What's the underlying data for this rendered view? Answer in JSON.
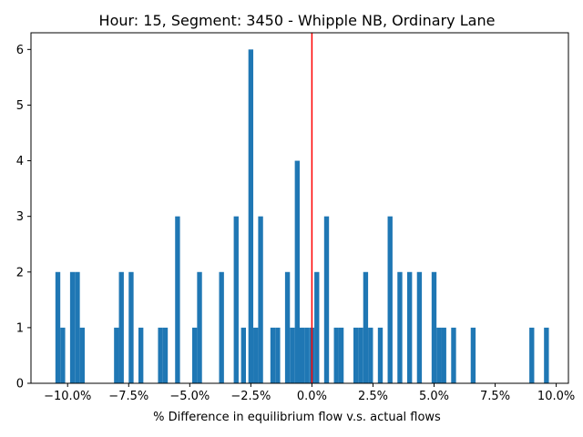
{
  "chart_data": {
    "type": "bar",
    "title": "Hour: 15, Segment: 3450 - Whipple NB, Ordinary Lane",
    "xlabel": "% Difference in equilibrium flow v.s. actual flows",
    "ylabel": "",
    "xlim": [
      -11.5,
      10.5
    ],
    "ylim": [
      0,
      6.3
    ],
    "bin_width": 0.2,
    "x_ticks": [
      -10.0,
      -7.5,
      -5.0,
      -2.5,
      0.0,
      2.5,
      5.0,
      7.5,
      10.0
    ],
    "x_tick_labels": [
      "−10.0%",
      "−7.5%",
      "−5.0%",
      "−2.5%",
      "0.0%",
      "2.5%",
      "5.0%",
      "7.5%",
      "10.0%"
    ],
    "y_ticks": [
      0,
      1,
      2,
      3,
      4,
      5,
      6
    ],
    "y_tick_labels": [
      "0",
      "1",
      "2",
      "3",
      "4",
      "5",
      "6"
    ],
    "bar_color": "#1f77b4",
    "reference_line": {
      "x": 0.0,
      "color": "#ff0000"
    },
    "bins": [
      {
        "x": -10.5,
        "count": 2
      },
      {
        "x": -10.3,
        "count": 1
      },
      {
        "x": -9.9,
        "count": 2
      },
      {
        "x": -9.7,
        "count": 2
      },
      {
        "x": -9.5,
        "count": 1
      },
      {
        "x": -8.1,
        "count": 1
      },
      {
        "x": -7.9,
        "count": 2
      },
      {
        "x": -7.5,
        "count": 2
      },
      {
        "x": -7.1,
        "count": 1
      },
      {
        "x": -6.3,
        "count": 1
      },
      {
        "x": -6.1,
        "count": 1
      },
      {
        "x": -5.6,
        "count": 3
      },
      {
        "x": -4.9,
        "count": 1
      },
      {
        "x": -4.7,
        "count": 2
      },
      {
        "x": -3.8,
        "count": 2
      },
      {
        "x": -3.2,
        "count": 3
      },
      {
        "x": -2.9,
        "count": 1
      },
      {
        "x": -2.6,
        "count": 6
      },
      {
        "x": -2.4,
        "count": 1
      },
      {
        "x": -2.2,
        "count": 3
      },
      {
        "x": -1.7,
        "count": 1
      },
      {
        "x": -1.5,
        "count": 1
      },
      {
        "x": -1.1,
        "count": 2
      },
      {
        "x": -0.9,
        "count": 1
      },
      {
        "x": -0.7,
        "count": 4
      },
      {
        "x": -0.5,
        "count": 1
      },
      {
        "x": -0.3,
        "count": 1
      },
      {
        "x": -0.1,
        "count": 1
      },
      {
        "x": 0.1,
        "count": 2
      },
      {
        "x": 0.5,
        "count": 3
      },
      {
        "x": 0.9,
        "count": 1
      },
      {
        "x": 1.1,
        "count": 1
      },
      {
        "x": 1.7,
        "count": 1
      },
      {
        "x": 1.9,
        "count": 1
      },
      {
        "x": 2.1,
        "count": 2
      },
      {
        "x": 2.3,
        "count": 1
      },
      {
        "x": 2.7,
        "count": 1
      },
      {
        "x": 3.1,
        "count": 3
      },
      {
        "x": 3.5,
        "count": 2
      },
      {
        "x": 3.9,
        "count": 2
      },
      {
        "x": 4.3,
        "count": 2
      },
      {
        "x": 4.9,
        "count": 2
      },
      {
        "x": 5.1,
        "count": 1
      },
      {
        "x": 5.3,
        "count": 1
      },
      {
        "x": 5.7,
        "count": 1
      },
      {
        "x": 6.5,
        "count": 1
      },
      {
        "x": 8.9,
        "count": 1
      },
      {
        "x": 9.5,
        "count": 1
      }
    ]
  }
}
